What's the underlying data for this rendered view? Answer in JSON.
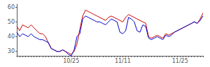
{
  "chart_data": {
    "type": "line",
    "categories": [
      null,
      null,
      null,
      null,
      null,
      null,
      null,
      null,
      null,
      null,
      null,
      null,
      null,
      null,
      null,
      null,
      null,
      null,
      null,
      "10/25",
      null,
      null,
      null,
      null,
      null,
      null,
      null,
      null,
      null,
      null,
      null,
      null,
      null,
      null,
      null,
      null,
      null,
      "11/11",
      null,
      null,
      null,
      null,
      null,
      null,
      null,
      null,
      null,
      null,
      null,
      null,
      null,
      null,
      null,
      null,
      null,
      null,
      null,
      "11/25",
      null,
      null,
      null,
      null,
      null,
      null,
      null,
      null
    ],
    "series": [
      {
        "color": "#cc0000",
        "values": [
          47,
          44,
          48,
          47,
          46,
          48,
          46,
          44,
          42,
          42,
          40,
          36,
          32,
          31,
          30,
          30,
          31,
          30,
          29,
          28,
          30,
          35,
          45,
          54,
          58,
          57,
          56,
          55,
          54,
          53,
          52,
          51,
          53,
          54,
          53,
          52,
          51,
          50,
          53,
          55,
          54,
          53,
          52,
          51,
          50,
          49,
          40,
          39,
          40,
          41,
          40,
          39,
          42,
          41,
          42,
          43,
          44,
          45,
          46,
          47,
          48,
          49,
          50,
          49,
          52,
          56
        ]
      },
      {
        "color": "#0000cc",
        "values": [
          43,
          40,
          42,
          41,
          40,
          42,
          40,
          39,
          38,
          38,
          37,
          36,
          32,
          31,
          30,
          30,
          31,
          30,
          28,
          27,
          31,
          40,
          42,
          52,
          54,
          53,
          52,
          51,
          50,
          50,
          49,
          48,
          50,
          52,
          51,
          50,
          43,
          42,
          44,
          53,
          52,
          50,
          44,
          43,
          48,
          47,
          39,
          38,
          39,
          40,
          39,
          38,
          41,
          40,
          41,
          43,
          44,
          45,
          46,
          47,
          48,
          49,
          50,
          49,
          51,
          54
        ]
      }
    ],
    "ylim": [
      27,
      62
    ],
    "yticks": [
      30,
      40,
      50,
      60
    ],
    "grid": false
  }
}
